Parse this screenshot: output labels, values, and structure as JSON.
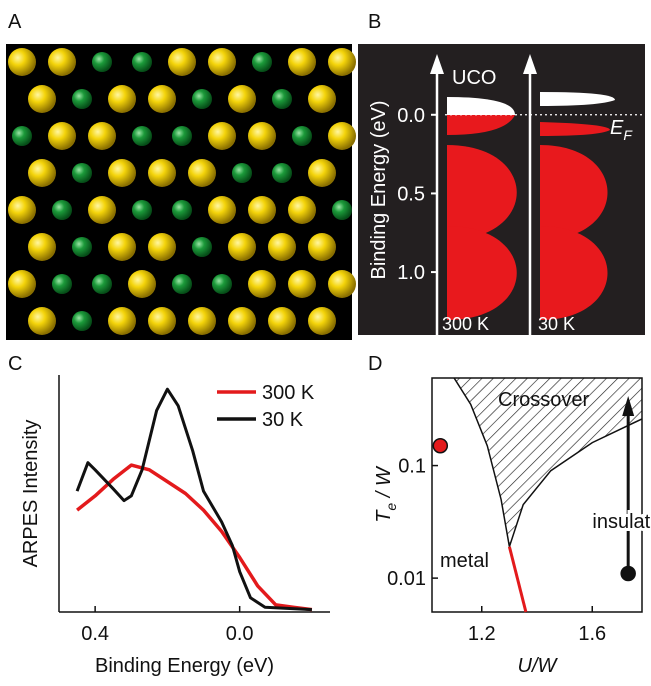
{
  "panel_labels": [
    "A",
    "B",
    "C",
    "D"
  ],
  "panel_b": {
    "y_label": "Binding Energy (eV)",
    "ylim": [
      1.4,
      -0.45
    ],
    "yticks": [
      {
        "value": 0,
        "label": "0.0"
      },
      0.5,
      {
        "value": 1,
        "label": "1.0"
      }
    ],
    "band_label": "UCO",
    "fermi_label": {
      "main": "E",
      "sub": "F"
    },
    "columns": [
      "300 K",
      "30 K"
    ]
  },
  "chart_data": [
    {
      "type": "line",
      "x_label": "Binding Energy (eV)",
      "y_label": "ARPES Intensity",
      "xlim": [
        0.5,
        -0.25
      ],
      "ylim": [
        0,
        1
      ],
      "xticks": [
        0.4,
        {
          "value": 0,
          "label": "0.0"
        }
      ],
      "legend": "upper right",
      "series": [
        {
          "name": "300 K",
          "color": "#e31a1c",
          "x": [
            0.45,
            0.4,
            0.35,
            0.3,
            0.25,
            0.2,
            0.15,
            0.1,
            0.05,
            0.0,
            -0.05,
            -0.1,
            -0.15,
            -0.2
          ],
          "values": [
            0.43,
            0.49,
            0.56,
            0.62,
            0.6,
            0.55,
            0.5,
            0.43,
            0.34,
            0.23,
            0.11,
            0.03,
            0.02,
            0.01
          ]
        },
        {
          "name": "30 K",
          "color": "#111111",
          "x": [
            0.45,
            0.42,
            0.4,
            0.35,
            0.32,
            0.3,
            0.27,
            0.23,
            0.2,
            0.17,
            0.13,
            0.1,
            0.05,
            0.02,
            0.0,
            -0.03,
            -0.07,
            -0.2
          ],
          "values": [
            0.51,
            0.63,
            0.6,
            0.52,
            0.47,
            0.49,
            0.6,
            0.85,
            0.94,
            0.87,
            0.68,
            0.51,
            0.38,
            0.28,
            0.17,
            0.06,
            0.02,
            0.01
          ]
        }
      ]
    },
    {
      "type": "phase",
      "x_label": "U/W",
      "y_label": {
        "main": "T",
        "sub": "e",
        "rest": " / W"
      },
      "xlim": [
        1.02,
        1.78
      ],
      "ylim": [
        0.005,
        0.6
      ],
      "log_y": true,
      "xticks": [
        1.2,
        1.6
      ],
      "yticks": [
        0.01,
        0.1
      ],
      "crossover": {
        "label": "Crossover",
        "upper": {
          "x": [
            1.3,
            1.27,
            1.22,
            1.16,
            1.1
          ],
          "values": [
            0.019,
            0.05,
            0.15,
            0.35,
            0.6
          ]
        },
        "lower": {
          "x": [
            1.3,
            1.35,
            1.45,
            1.6,
            1.78
          ],
          "values": [
            0.019,
            0.045,
            0.09,
            0.16,
            0.26
          ]
        }
      },
      "metal_line": {
        "label": "metal",
        "color": "#e31a1c",
        "x": [
          1.3,
          1.36
        ],
        "values": [
          0.019,
          0.005
        ]
      },
      "points": [
        {
          "color": "#e31a1c",
          "x": 1.05,
          "value": 0.15
        },
        {
          "color": "#111111",
          "x": 1.73,
          "value": 0.011,
          "label": "insulator"
        }
      ]
    }
  ]
}
